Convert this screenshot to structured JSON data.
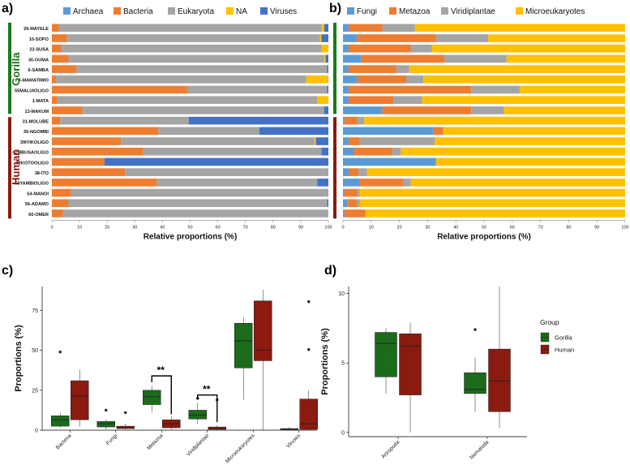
{
  "panel_labels": [
    "a)",
    "b)",
    "c)",
    "d)"
  ],
  "colors": {
    "archaea": "#5b9bd5",
    "bacteria": "#ed7d31",
    "eukaryota": "#a5a5a5",
    "na": "#ffc000",
    "viruses": "#4472c4",
    "fungi": "#5b9bd5",
    "metazoa": "#ed7d31",
    "viridiplantae": "#a5a5a5",
    "microeukaryotes": "#ffc000",
    "gorilla": "#1a6b1a",
    "human": "#8b1a10",
    "gorilla_bar": "#1a7a1a",
    "human_bar": "#8b1a10"
  },
  "chart_data": [
    {
      "type": "bar",
      "orientation": "horizontal-stacked",
      "panel": "a)",
      "xlabel": "Relative proportions (%)",
      "xlim": [
        0,
        100
      ],
      "xticks": [
        "0",
        "10",
        "20",
        "30",
        "40",
        "50",
        "60",
        "70",
        "80",
        "90",
        "100"
      ],
      "groups": [
        {
          "name": "Gorilla",
          "categories": [
            "26-MAYELE",
            "10-SOPO",
            "22-SUSA",
            "30-OUMA",
            "6-SAMBA",
            "3-MAMATIMIO",
            "55MALUIOLIGO",
            "1-MATA",
            "13-MAKUM"
          ]
        },
        {
          "name": "Human",
          "categories": [
            "31-MOLUBE",
            "35-NGOMBI",
            "39IYIKOLIGO",
            "47MBUSAOLIGO",
            "32KOTOOLIGO",
            "38-ITO",
            "53YAMBIOLIGO",
            "54-MANOI",
            "56-ADAMO",
            "60-OMER"
          ]
        }
      ],
      "categories": [
        "26-MAYELE",
        "10-SOPO",
        "22-SUSA",
        "30-OUMA",
        "6-SAMBA",
        "3-MAMATIMIO",
        "55MALUIOLIGO",
        "1-MATA",
        "13-MAKUM",
        "31-MOLUBE",
        "35-NGOMBI",
        "39IYIKOLIGO",
        "47MBUSAOLIGO",
        "32KOTOOLIGO",
        "38-ITO",
        "53YAMBIOLIGO",
        "54-MANOI",
        "56-ADAMO",
        "60-OMER"
      ],
      "series": [
        {
          "name": "Archaea",
          "values": [
            0,
            0,
            0,
            0,
            0,
            0,
            0,
            0,
            0,
            0,
            0,
            0,
            0,
            0,
            0,
            0,
            0,
            0,
            0
          ]
        },
        {
          "name": "Bacteria",
          "values": [
            2.5,
            5.5,
            3.5,
            6,
            9,
            1.5,
            49,
            2,
            11,
            3,
            38.5,
            25,
            33,
            19,
            26.5,
            38,
            7,
            6,
            4
          ]
        },
        {
          "name": "Eukaryota",
          "values": [
            95,
            91.5,
            94,
            92.5,
            90.5,
            90.5,
            50.5,
            94,
            87.5,
            46.5,
            36.5,
            70,
            64.5,
            0,
            73.5,
            58,
            93,
            93.5,
            96
          ]
        },
        {
          "name": "NA",
          "values": [
            1,
            0.5,
            2.5,
            0.5,
            0,
            8,
            0,
            4,
            0,
            0,
            0,
            0.5,
            0,
            0,
            0,
            0,
            0,
            0,
            0
          ]
        },
        {
          "name": "Viruses",
          "values": [
            1.5,
            2.5,
            0,
            1,
            0.5,
            0,
            0.5,
            0,
            1.5,
            50.5,
            25,
            4.5,
            2.5,
            81,
            0,
            4,
            0,
            0.5,
            0
          ]
        }
      ]
    },
    {
      "type": "bar",
      "orientation": "horizontal-stacked",
      "panel": "b)",
      "xlabel": "Relative proportions (%)",
      "xlim": [
        0,
        100
      ],
      "xticks": [
        "0",
        "10",
        "20",
        "30",
        "40",
        "50",
        "60",
        "70",
        "80",
        "90",
        "100"
      ],
      "categories": [
        "26-MAYELE",
        "10-SOPO",
        "22-SUSA",
        "30-OUMA",
        "6-SAMBA",
        "3-MAMATIMIO",
        "55MALUIOLIGO",
        "1-MATA",
        "13-MAKUM",
        "31-MOLUBE",
        "35-NGOMBI",
        "39IYIKOLIGO",
        "47MBUSAOLIGO",
        "32KOTOOLIGO",
        "38-ITO",
        "53YAMBIOLIGO",
        "54-MANOI",
        "56-ADAMO",
        "60-OMER"
      ],
      "series": [
        {
          "name": "Fungi",
          "values": [
            2,
            5,
            2,
            6.5,
            2,
            5,
            2,
            2,
            14,
            0.5,
            32,
            2,
            4,
            33,
            2,
            6,
            0.5,
            1.5,
            0.5
          ]
        },
        {
          "name": "Metazoa",
          "values": [
            12,
            28,
            22,
            29.5,
            17,
            17.5,
            43.5,
            16,
            31.5,
            4.5,
            3.5,
            4,
            13.5,
            0,
            3.5,
            15.5,
            4.5,
            3.5,
            7.5
          ]
        },
        {
          "name": "Viridiplantae",
          "values": [
            11.5,
            18.5,
            7.5,
            22,
            4.5,
            6,
            17,
            10,
            11.5,
            2.5,
            0,
            26.5,
            3,
            0,
            3,
            2.5,
            1,
            1,
            0
          ]
        },
        {
          "name": "Microeukaryotes",
          "values": [
            74.5,
            48.5,
            68.5,
            42,
            76.5,
            71.5,
            37.5,
            72,
            43,
            92.5,
            64.5,
            67.5,
            79.5,
            67,
            91.5,
            76,
            94,
            94,
            92
          ]
        }
      ]
    },
    {
      "type": "box",
      "panel": "c)",
      "ylabel": "Proportions (%)",
      "ylim": [
        0,
        90
      ],
      "yticks": [
        "0",
        "25",
        "50",
        "75"
      ],
      "categories": [
        "Bacteria",
        "Fungi",
        "Metazoa",
        "Viridiplantae",
        "Microeukaryotes",
        "Viruses"
      ],
      "series": [
        {
          "name": "Gorilla",
          "boxes": [
            {
              "min": 1.5,
              "q1": 2.5,
              "median": 6.5,
              "q3": 9,
              "max": 11,
              "outliers": [
                49
              ]
            },
            {
              "min": 0.5,
              "q1": 2,
              "median": 4,
              "q3": 5.5,
              "max": 6.5,
              "outliers": [
                12.5
              ]
            },
            {
              "min": 11,
              "q1": 16,
              "median": 21,
              "q3": 25,
              "max": 28,
              "outliers": []
            },
            {
              "min": 4,
              "q1": 7,
              "median": 9.5,
              "q3": 12.5,
              "max": 17,
              "outliers": [
                20
              ]
            },
            {
              "min": 19,
              "q1": 39,
              "median": 56,
              "q3": 67,
              "max": 71,
              "outliers": []
            },
            {
              "min": 0,
              "q1": 0.3,
              "median": 0.7,
              "q3": 1,
              "max": 2,
              "outliers": []
            }
          ]
        },
        {
          "name": "Human",
          "boxes": [
            {
              "min": 2,
              "q1": 6.5,
              "median": 21.5,
              "q3": 31,
              "max": 38,
              "outliers": []
            },
            {
              "min": 0.5,
              "q1": 1,
              "median": 1.5,
              "q3": 2.5,
              "max": 4,
              "outliers": [
                11
              ]
            },
            {
              "min": 0.5,
              "q1": 1.5,
              "median": 4,
              "q3": 6.5,
              "max": 8.5,
              "outliers": []
            },
            {
              "min": 0,
              "q1": 0.5,
              "median": 1,
              "q3": 2,
              "max": 3,
              "outliers": [
                19
              ]
            },
            {
              "min": 0,
              "q1": 43.5,
              "median": 50,
              "q3": 81,
              "max": 88,
              "outliers": []
            },
            {
              "min": 0,
              "q1": 0.5,
              "median": 4,
              "q3": 19.5,
              "max": 25,
              "outliers": [
                50.5,
                80.5
              ]
            }
          ]
        }
      ],
      "annotations": [
        {
          "category": "Metazoa",
          "text": "**"
        },
        {
          "category": "Viridiplantae",
          "text": "**"
        }
      ]
    },
    {
      "type": "box",
      "panel": "d)",
      "ylabel": "Proportions (%)",
      "ylim": [
        -0.3,
        10.5
      ],
      "yticks": [
        "0",
        "5",
        "10"
      ],
      "categories": [
        "Artropoda",
        "Nematoda"
      ],
      "series": [
        {
          "name": "Gorilla",
          "boxes": [
            {
              "min": 2.8,
              "q1": 4,
              "median": 6.4,
              "q3": 7.2,
              "max": 7.5,
              "outliers": []
            },
            {
              "min": 1.5,
              "q1": 2.8,
              "median": 3.1,
              "q3": 4.3,
              "max": 5.4,
              "outliers": [
                7.4
              ]
            }
          ]
        },
        {
          "name": "Human",
          "boxes": [
            {
              "min": 0,
              "q1": 2.7,
              "median": 6.2,
              "q3": 7.1,
              "max": 7.9,
              "outliers": []
            },
            {
              "min": 0.3,
              "q1": 1.5,
              "median": 3.7,
              "q3": 6,
              "max": 10.5,
              "outliers": []
            }
          ]
        }
      ]
    }
  ],
  "legend_d": {
    "title": "Group",
    "items": [
      "Gorilla",
      "Human"
    ]
  }
}
